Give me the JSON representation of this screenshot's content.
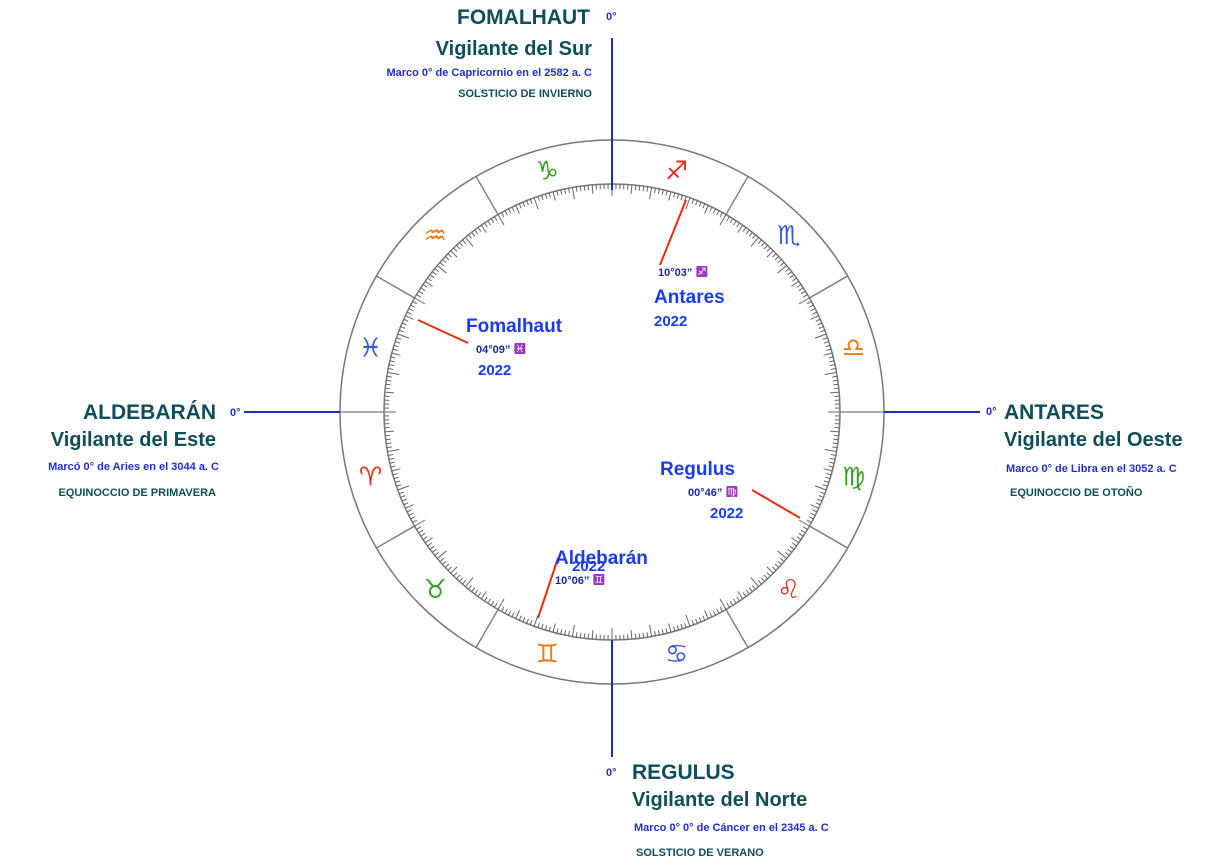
{
  "cardinals": [
    {
      "degree": "0°",
      "title": "FOMALHAUT",
      "subtitle": "Vigilante del Sur",
      "mark": "Marco 0° de Capricornio en el 2582 a. C",
      "season": "SOLSTICIO DE INVIERNO"
    },
    {
      "degree": "0°",
      "title": "ALDEBARÁN",
      "subtitle": "Vigilante del Este",
      "mark": "Marcó 0° de Aries en el 3044 a. C",
      "season": "EQUINOCCIO DE PRIMAVERA"
    },
    {
      "degree": "0°",
      "title": "ANTARES",
      "subtitle": "Vigilante del Oeste",
      "mark": "Marco 0° de Libra en el 3052 a. C",
      "season": "EQUINOCCIO DE OTOÑO"
    },
    {
      "degree": "0°",
      "title": "REGULUS",
      "subtitle": "Vigilante del Norte",
      "mark": "Marco 0° 0° de Cáncer en el 2345 a. C",
      "season": "SOLSTICIO DE VERANO"
    }
  ],
  "signs": [
    "♐",
    "♏",
    "♎",
    "♍",
    "♌",
    "♋",
    "♊",
    "♉",
    "♈",
    "♓",
    "♒",
    "♑"
  ],
  "stars": [
    {
      "name": "Antares",
      "position": "10°03”",
      "glyph": "♐",
      "year": "2022"
    },
    {
      "name": "Fomalhaut",
      "position": "04°09”",
      "glyph": "♓",
      "year": "2022"
    },
    {
      "name": "Regulus",
      "position": "00°46”",
      "glyph": "♍",
      "year": "2022"
    },
    {
      "name": "Aldebarán",
      "position": "10°06”",
      "glyph": "♊",
      "year": "2022"
    }
  ]
}
